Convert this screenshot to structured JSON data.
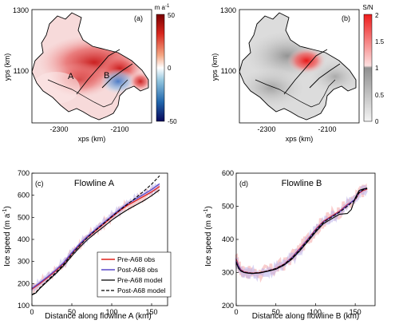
{
  "colors": {
    "pre_obs": "#e0201b",
    "post_obs": "#5a48c8",
    "pre_obs_band": "#f4a6a6",
    "post_obs_band": "#b9b1ea",
    "model": "#000000",
    "red_dark": "#8b0000",
    "blue_dark": "#0a1a8c"
  },
  "chart_data": [
    {
      "panel": "(a)",
      "type": "heatmap",
      "xlabel": "xps (km)",
      "ylabel": "yps (km)",
      "xticks": [
        -2300,
        -2100
      ],
      "yticks": [
        1100,
        1300
      ],
      "xlim": [
        -2420,
        -2000
      ],
      "ylim": [
        900,
        1320
      ],
      "labels": [
        "A",
        "B"
      ],
      "colorbar": {
        "unit": "m a",
        "unit_exp": "-1",
        "ticks": [
          50,
          0,
          -50
        ],
        "range": [
          -50,
          50
        ]
      }
    },
    {
      "panel": "(b)",
      "type": "heatmap",
      "xlabel": "xps (km)",
      "ylabel": "yps (km)",
      "xticks": [
        -2300,
        -2100
      ],
      "yticks": [
        1100,
        1300
      ],
      "xlim": [
        -2420,
        -2000
      ],
      "ylim": [
        900,
        1320
      ],
      "colorbar": {
        "title": "S/N",
        "ticks": [
          2,
          1.5,
          1,
          0.5,
          0
        ],
        "range": [
          0,
          2
        ]
      }
    },
    {
      "panel": "(c)",
      "type": "line",
      "title": "Flowline A",
      "xlabel": "Distance along flowline A (km)",
      "ylabel": "Ice speed (m a",
      "ylabel_exp": "-1",
      "ylabel_close": ")",
      "xlim": [
        0,
        170
      ],
      "ylim": [
        100,
        700
      ],
      "xticks": [
        0,
        50,
        100,
        150
      ],
      "yticks": [
        100,
        200,
        300,
        400,
        500,
        600,
        700
      ],
      "legend_position": "bottom-right",
      "series": [
        {
          "name": "Pre-A68 obs",
          "x": [
            0,
            10,
            20,
            30,
            40,
            50,
            60,
            70,
            80,
            90,
            100,
            110,
            120,
            130,
            140,
            150,
            160
          ],
          "y": [
            175,
            200,
            228,
            258,
            292,
            335,
            375,
            410,
            440,
            470,
            500,
            530,
            555,
            575,
            595,
            615,
            640
          ]
        },
        {
          "name": "Post-A68 obs",
          "x": [
            0,
            10,
            20,
            30,
            40,
            50,
            60,
            70,
            80,
            90,
            100,
            110,
            120,
            130,
            140,
            150,
            160
          ],
          "y": [
            178,
            204,
            232,
            262,
            296,
            340,
            380,
            415,
            446,
            476,
            506,
            536,
            562,
            583,
            604,
            626,
            652
          ]
        },
        {
          "name": "Pre-A68 model",
          "x": [
            0,
            5,
            10,
            20,
            30,
            40,
            50,
            60,
            70,
            80,
            90,
            100,
            110,
            120,
            130,
            140,
            150,
            160
          ],
          "y": [
            148,
            158,
            178,
            212,
            245,
            282,
            325,
            365,
            400,
            430,
            458,
            487,
            512,
            535,
            555,
            575,
            598,
            625
          ]
        },
        {
          "name": "Post-A68 model",
          "x": [
            0,
            5,
            10,
            20,
            30,
            40,
            50,
            60,
            70,
            80,
            90,
            100,
            110,
            120,
            130,
            140,
            150,
            160
          ],
          "y": [
            150,
            160,
            181,
            216,
            250,
            288,
            332,
            373,
            410,
            442,
            472,
            503,
            532,
            560,
            588,
            618,
            650,
            688
          ]
        }
      ]
    },
    {
      "panel": "(d)",
      "type": "line",
      "title": "Flowline B",
      "xlabel": "Distance along flowline B (km)",
      "ylabel": "Ice speed (m a",
      "ylabel_exp": "-1",
      "ylabel_close": ")",
      "xlim": [
        0,
        175
      ],
      "ylim": [
        200,
        600
      ],
      "xticks": [
        0,
        50,
        100,
        150
      ],
      "yticks": [
        200,
        300,
        400,
        500,
        600
      ],
      "series": [
        {
          "name": "Pre-A68 obs",
          "x": [
            0,
            3,
            6,
            10,
            15,
            20,
            30,
            40,
            50,
            60,
            70,
            80,
            90,
            100,
            110,
            120,
            130,
            140,
            150,
            155,
            160,
            165
          ],
          "y": [
            340,
            320,
            308,
            302,
            300,
            298,
            300,
            305,
            312,
            325,
            345,
            372,
            400,
            430,
            455,
            470,
            485,
            505,
            520,
            540,
            548,
            552
          ]
        },
        {
          "name": "Post-A68 obs",
          "x": [
            0,
            3,
            6,
            10,
            15,
            20,
            30,
            40,
            50,
            60,
            70,
            80,
            90,
            100,
            110,
            120,
            130,
            140,
            150,
            155,
            160,
            165
          ],
          "y": [
            335,
            318,
            306,
            301,
            299,
            297,
            299,
            304,
            311,
            324,
            344,
            370,
            398,
            428,
            453,
            468,
            483,
            503,
            522,
            542,
            550,
            554
          ]
        },
        {
          "name": "Pre-A68 model",
          "x": [
            0,
            3,
            6,
            10,
            15,
            20,
            30,
            40,
            50,
            60,
            70,
            80,
            90,
            100,
            110,
            120,
            130,
            140,
            145,
            150,
            155,
            160,
            165
          ],
          "y": [
            330,
            312,
            304,
            300,
            298,
            297,
            299,
            304,
            310,
            322,
            340,
            365,
            393,
            422,
            448,
            462,
            476,
            478,
            490,
            525,
            548,
            552,
            555
          ]
        },
        {
          "name": "Post-A68 model",
          "x": [
            0,
            3,
            6,
            10,
            15,
            20,
            30,
            40,
            50,
            60,
            70,
            80,
            90,
            100,
            110,
            120,
            130,
            140,
            150,
            155,
            160,
            165
          ],
          "y": [
            332,
            314,
            305,
            301,
            299,
            298,
            300,
            305,
            312,
            324,
            343,
            368,
            397,
            426,
            452,
            467,
            482,
            500,
            520,
            542,
            550,
            554
          ]
        }
      ]
    }
  ]
}
